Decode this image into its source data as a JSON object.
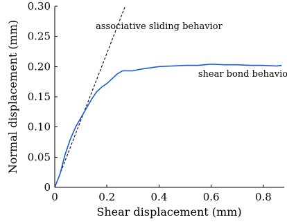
{
  "chart_data": {
    "type": "line",
    "xlabel": "Shear displacement (mm)",
    "ylabel": "Normal displacement (mm)",
    "xlim": [
      0,
      0.88
    ],
    "ylim": [
      0,
      0.3
    ],
    "x_ticks": [
      0,
      0.2,
      0.4,
      0.6,
      0.8
    ],
    "x_tick_labels": [
      "0",
      "0.2",
      "0.4",
      "0.6",
      "0.8"
    ],
    "y_ticks": [
      0,
      0.05,
      0.1,
      0.15,
      0.2,
      0.25,
      0.3
    ],
    "y_tick_labels": [
      "0",
      "0.05",
      "0.10",
      "0.15",
      "0.20",
      "0.25",
      "0.30"
    ],
    "grid": false,
    "series": [
      {
        "key": "associative",
        "color": "#000000",
        "dash": "dashed",
        "x": [
          0,
          0.27
        ],
        "y": [
          0,
          0.3
        ]
      },
      {
        "key": "shear_bond",
        "color": "#1f5bd8",
        "dash": "solid",
        "x": [
          0,
          0.02,
          0.04,
          0.06,
          0.08,
          0.1,
          0.12,
          0.14,
          0.16,
          0.18,
          0.2,
          0.22,
          0.24,
          0.26,
          0.28,
          0.3,
          0.32,
          0.35,
          0.4,
          0.45,
          0.5,
          0.55,
          0.6,
          0.65,
          0.7,
          0.75,
          0.8,
          0.85,
          0.87
        ],
        "y": [
          0,
          0.022,
          0.055,
          0.08,
          0.1,
          0.115,
          0.13,
          0.145,
          0.158,
          0.166,
          0.172,
          0.18,
          0.188,
          0.193,
          0.193,
          0.193,
          0.195,
          0.197,
          0.2,
          0.201,
          0.202,
          0.202,
          0.204,
          0.203,
          0.203,
          0.202,
          0.202,
          0.201,
          0.202
        ]
      }
    ],
    "annotations": [
      {
        "key": "associative",
        "text": "associative sliding behavior",
        "x": 0.4,
        "y": 0.262
      },
      {
        "key": "shear_bond",
        "text": "shear bond behavior",
        "x": 0.73,
        "y": 0.183
      }
    ]
  }
}
